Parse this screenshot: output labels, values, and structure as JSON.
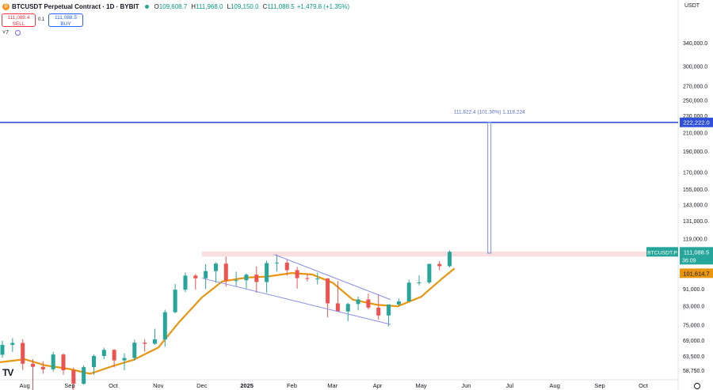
{
  "header": {
    "title": "BTCUSDT Perpetual Contract · 1D · BYBIT",
    "o_label": "O",
    "o_value": "109,608.7",
    "h_label": "H",
    "h_value": "111,968.0",
    "l_label": "L",
    "l_value": "109,150.0",
    "c_label": "C",
    "c_value": "111,088.5",
    "change": "+1,479.8 (+1.35%)",
    "icon": "bitcoin-icon"
  },
  "trade": {
    "sell_price": "111,088.4",
    "sell_label": "SELL",
    "spread": "0.1",
    "buy_price": "111,088.5",
    "buy_label": "BUY"
  },
  "indicators_count": "7",
  "currency": "USDT",
  "logo_text": "TV",
  "colors": {
    "up": "#26a69a",
    "down": "#ef5350",
    "ma": "#e8960f",
    "level": "#2f4fd8",
    "channel": "#8a8fe8",
    "measure": "#7b8fe0",
    "zone": "#f6d6d6"
  },
  "chart_data": {
    "type": "candlestick",
    "y_scale": "log",
    "ylim": [
      56000,
      400000
    ],
    "y_ticks": [
      "340,000.0",
      "300,000.0",
      "270,000.0",
      "250,000.0",
      "230,000.0",
      "210,000.0",
      "190,000.0",
      "170,000.0",
      "155,000.0",
      "143,000.0",
      "131,000.0",
      "119,000.0",
      "99,000.0",
      "91,000.0",
      "83,000.0",
      "75,000.0",
      "69,000.0",
      "63,500.0",
      "58,750.0"
    ],
    "y_tick_values": [
      340000,
      300000,
      270000,
      250000,
      230000,
      210000,
      190000,
      170000,
      155000,
      143000,
      131000,
      119000,
      99000,
      91000,
      83000,
      75000,
      69000,
      63500,
      58750
    ],
    "x_labels": [
      "Aug",
      "Sep",
      "Oct",
      "Nov",
      "Dec",
      "2025",
      "Feb",
      "Mar",
      "Apr",
      "May",
      "Jun",
      "Jul",
      "Aug",
      "Sep",
      "Oct"
    ],
    "x_label_dates": [
      "2024-08-01",
      "2024-09-01",
      "2024-10-01",
      "2024-11-01",
      "2024-12-01",
      "2025-01-01",
      "2025-02-01",
      "2025-03-01",
      "2025-04-01",
      "2025-05-01",
      "2025-06-01",
      "2025-07-01",
      "2025-08-01",
      "2025-09-01",
      "2025-10-01"
    ],
    "x_range": [
      "2024-07-15",
      "2025-10-25"
    ],
    "candles_weekly_approx": [
      {
        "date": "2024-07-15",
        "o": 64000,
        "h": 69000,
        "l": 63000,
        "c": 67500
      },
      {
        "date": "2024-07-22",
        "o": 67500,
        "h": 70000,
        "l": 65000,
        "c": 68200
      },
      {
        "date": "2024-07-29",
        "o": 68200,
        "h": 69500,
        "l": 59000,
        "c": 61000
      },
      {
        "date": "2024-08-05",
        "o": 61000,
        "h": 62500,
        "l": 50000,
        "c": 60000
      },
      {
        "date": "2024-08-12",
        "o": 60000,
        "h": 61800,
        "l": 57800,
        "c": 59200
      },
      {
        "date": "2024-08-19",
        "o": 59200,
        "h": 65000,
        "l": 58500,
        "c": 64100
      },
      {
        "date": "2024-08-26",
        "o": 64100,
        "h": 64500,
        "l": 57500,
        "c": 58900
      },
      {
        "date": "2024-09-02",
        "o": 58900,
        "h": 59800,
        "l": 52600,
        "c": 54800
      },
      {
        "date": "2024-09-09",
        "o": 54800,
        "h": 60500,
        "l": 54500,
        "c": 59900
      },
      {
        "date": "2024-09-16",
        "o": 59900,
        "h": 64100,
        "l": 57500,
        "c": 63600
      },
      {
        "date": "2024-09-23",
        "o": 63600,
        "h": 66500,
        "l": 62600,
        "c": 65700
      },
      {
        "date": "2024-09-30",
        "o": 65700,
        "h": 66000,
        "l": 59800,
        "c": 62100
      },
      {
        "date": "2024-10-07",
        "o": 62100,
        "h": 64500,
        "l": 58900,
        "c": 62900
      },
      {
        "date": "2024-10-14",
        "o": 62900,
        "h": 69400,
        "l": 62000,
        "c": 68300
      },
      {
        "date": "2024-10-21",
        "o": 68300,
        "h": 69500,
        "l": 65100,
        "c": 67900
      },
      {
        "date": "2024-10-28",
        "o": 67900,
        "h": 73600,
        "l": 67500,
        "c": 69500
      },
      {
        "date": "2024-11-04",
        "o": 69500,
        "h": 81500,
        "l": 66800,
        "c": 80400
      },
      {
        "date": "2024-11-11",
        "o": 80400,
        "h": 93500,
        "l": 80000,
        "c": 90700
      },
      {
        "date": "2024-11-18",
        "o": 90700,
        "h": 99500,
        "l": 89500,
        "c": 97800
      },
      {
        "date": "2024-11-25",
        "o": 97800,
        "h": 98700,
        "l": 90700,
        "c": 96400
      },
      {
        "date": "2024-12-02",
        "o": 96400,
        "h": 104000,
        "l": 91000,
        "c": 100200
      },
      {
        "date": "2024-12-09",
        "o": 100200,
        "h": 105000,
        "l": 94100,
        "c": 104300
      },
      {
        "date": "2024-12-16",
        "o": 104300,
        "h": 108300,
        "l": 92200,
        "c": 95300
      },
      {
        "date": "2024-12-23",
        "o": 95300,
        "h": 99900,
        "l": 92500,
        "c": 95400
      },
      {
        "date": "2024-12-30",
        "o": 95400,
        "h": 99000,
        "l": 91300,
        "c": 98300
      },
      {
        "date": "2025-01-06",
        "o": 98300,
        "h": 102700,
        "l": 89200,
        "c": 94500
      },
      {
        "date": "2025-01-13",
        "o": 94500,
        "h": 106000,
        "l": 89300,
        "c": 104600
      },
      {
        "date": "2025-01-20",
        "o": 104600,
        "h": 109500,
        "l": 100000,
        "c": 104800
      },
      {
        "date": "2025-01-27",
        "o": 104800,
        "h": 106400,
        "l": 97800,
        "c": 100700
      },
      {
        "date": "2025-02-03",
        "o": 100700,
        "h": 102500,
        "l": 91200,
        "c": 96500
      },
      {
        "date": "2025-02-10",
        "o": 96500,
        "h": 98800,
        "l": 94800,
        "c": 96200
      },
      {
        "date": "2025-02-17",
        "o": 96200,
        "h": 99400,
        "l": 93300,
        "c": 96300
      },
      {
        "date": "2025-02-24",
        "o": 96300,
        "h": 96500,
        "l": 78200,
        "c": 84300
      },
      {
        "date": "2025-03-03",
        "o": 84300,
        "h": 95000,
        "l": 81500,
        "c": 80700
      },
      {
        "date": "2025-03-10",
        "o": 80700,
        "h": 84500,
        "l": 76700,
        "c": 84000
      },
      {
        "date": "2025-03-17",
        "o": 84000,
        "h": 87400,
        "l": 81200,
        "c": 86100
      },
      {
        "date": "2025-03-24",
        "o": 86100,
        "h": 88800,
        "l": 81600,
        "c": 82400
      },
      {
        "date": "2025-03-31",
        "o": 82400,
        "h": 88500,
        "l": 77200,
        "c": 79000
      },
      {
        "date": "2025-04-07",
        "o": 79000,
        "h": 83500,
        "l": 74500,
        "c": 83800
      },
      {
        "date": "2025-04-14",
        "o": 83800,
        "h": 86500,
        "l": 83100,
        "c": 85200
      },
      {
        "date": "2025-04-21",
        "o": 85200,
        "h": 95700,
        "l": 85100,
        "c": 94200
      },
      {
        "date": "2025-04-28",
        "o": 94200,
        "h": 97900,
        "l": 92800,
        "c": 94300
      },
      {
        "date": "2025-05-05",
        "o": 94300,
        "h": 104300,
        "l": 93400,
        "c": 104100
      },
      {
        "date": "2025-05-12",
        "o": 104100,
        "h": 105800,
        "l": 100700,
        "c": 102900
      },
      {
        "date": "2025-05-19",
        "o": 102900,
        "h": 111968,
        "l": 102200,
        "c": 111088.5
      }
    ],
    "moving_average": [
      {
        "date": "2024-07-15",
        "v": 61500
      },
      {
        "date": "2024-08-01",
        "v": 62500
      },
      {
        "date": "2024-08-15",
        "v": 60500
      },
      {
        "date": "2024-09-01",
        "v": 59300
      },
      {
        "date": "2024-09-15",
        "v": 57800
      },
      {
        "date": "2024-10-01",
        "v": 60300
      },
      {
        "date": "2024-10-15",
        "v": 62300
      },
      {
        "date": "2024-11-01",
        "v": 66500
      },
      {
        "date": "2024-11-15",
        "v": 76000
      },
      {
        "date": "2024-12-01",
        "v": 87000
      },
      {
        "date": "2024-12-15",
        "v": 94800
      },
      {
        "date": "2025-01-01",
        "v": 96800
      },
      {
        "date": "2025-01-15",
        "v": 97300
      },
      {
        "date": "2025-02-01",
        "v": 99200
      },
      {
        "date": "2025-02-15",
        "v": 98400
      },
      {
        "date": "2025-03-01",
        "v": 94200
      },
      {
        "date": "2025-03-15",
        "v": 86000
      },
      {
        "date": "2025-04-01",
        "v": 83600
      },
      {
        "date": "2025-04-15",
        "v": 83000
      },
      {
        "date": "2025-05-01",
        "v": 87300
      },
      {
        "date": "2025-05-15",
        "v": 96000
      },
      {
        "date": "2025-05-24",
        "v": 101614.7
      }
    ],
    "horizontal_level": {
      "value": 222222.0,
      "label": "222,222.0"
    },
    "resistance_zone": {
      "from": 108300,
      "to": 111300
    },
    "channel": {
      "upper": [
        {
          "date": "2025-01-20",
          "v": 109500
        },
        {
          "date": "2025-04-10",
          "v": 86000
        }
      ],
      "lower": [
        {
          "date": "2024-12-01",
          "v": 96500
        },
        {
          "date": "2025-04-10",
          "v": 75300
        }
      ]
    },
    "measure": {
      "date": "2025-06-17",
      "from": 110300,
      "to": 222222,
      "label": "111,822.4 (101.30%) 1,118,224"
    },
    "last_price": {
      "symbol": "BTCUSDT.P",
      "value": "111,088.5",
      "countdown": "36:09"
    },
    "ma_last_label": "101,614.7"
  }
}
